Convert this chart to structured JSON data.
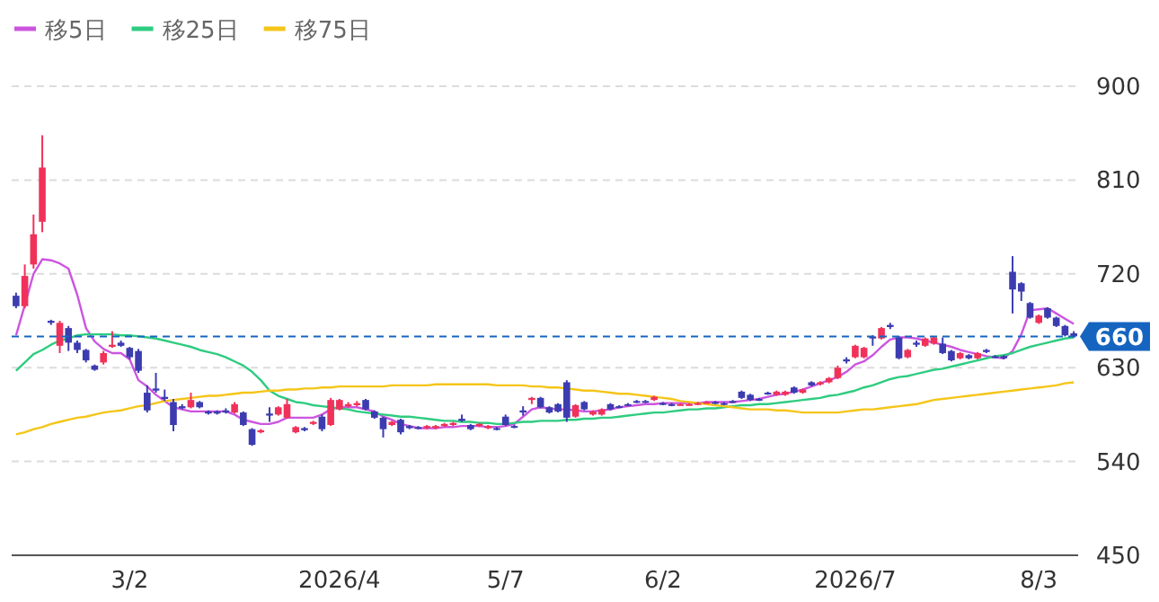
{
  "chart_data": {
    "type": "candlestick",
    "categories": [
      null,
      null,
      null,
      null,
      null,
      null,
      null,
      null,
      null,
      null,
      null,
      null,
      null,
      "3/2",
      null,
      null,
      null,
      null,
      null,
      null,
      null,
      null,
      null,
      null,
      null,
      null,
      null,
      null,
      null,
      null,
      null,
      null,
      null,
      null,
      null,
      null,
      null,
      "2026/4",
      null,
      null,
      null,
      null,
      null,
      null,
      null,
      null,
      null,
      null,
      null,
      null,
      null,
      null,
      null,
      null,
      null,
      null,
      "5/7",
      null,
      null,
      null,
      null,
      null,
      null,
      null,
      null,
      null,
      null,
      null,
      null,
      null,
      null,
      null,
      null,
      null,
      "6/2",
      null,
      null,
      null,
      null,
      null,
      null,
      null,
      null,
      null,
      null,
      null,
      null,
      null,
      null,
      null,
      null,
      null,
      null,
      null,
      null,
      null,
      "2026/7",
      null,
      null,
      null,
      null,
      null,
      null,
      null,
      null,
      null,
      null,
      null,
      null,
      null,
      null,
      null,
      null,
      null,
      null,
      null,
      null,
      "8/3",
      null,
      null,
      null,
      null
    ],
    "ohlc": [
      [
        699,
        702,
        687,
        689
      ],
      [
        689,
        729,
        687,
        718
      ],
      [
        729,
        777,
        725,
        758
      ],
      [
        770,
        853,
        760,
        822
      ],
      [
        675,
        676,
        671,
        673
      ],
      [
        651,
        675,
        644,
        673
      ],
      [
        668,
        670,
        646,
        654
      ],
      [
        654,
        656,
        644,
        647
      ],
      [
        647,
        648,
        635,
        637
      ],
      [
        632,
        633,
        627,
        628
      ],
      [
        635,
        646,
        633,
        644
      ],
      [
        650,
        665,
        649,
        652
      ],
      [
        654,
        656,
        650,
        651
      ],
      [
        649,
        650,
        638,
        640
      ],
      [
        646,
        648,
        625,
        627
      ],
      [
        606,
        613,
        587,
        589
      ],
      [
        610,
        625,
        606,
        608
      ],
      [
        602,
        609,
        598,
        600
      ],
      [
        597,
        600,
        569,
        575
      ],
      [
        593,
        595,
        590,
        591
      ],
      [
        592,
        606,
        591,
        599
      ],
      [
        597,
        598,
        591,
        592
      ],
      [
        588,
        589,
        585,
        586
      ],
      [
        588,
        589,
        585,
        586
      ],
      [
        589,
        591,
        586,
        587
      ],
      [
        587,
        597,
        586,
        595
      ],
      [
        587,
        588,
        574,
        575
      ],
      [
        571,
        572,
        555,
        556
      ],
      [
        568,
        571,
        567,
        570
      ],
      [
        586,
        592,
        578,
        584
      ],
      [
        585,
        593,
        584,
        592
      ],
      [
        582,
        600,
        581,
        595
      ],
      [
        568,
        574,
        567,
        573
      ],
      [
        572,
        573,
        569,
        570
      ],
      [
        576,
        579,
        575,
        578
      ],
      [
        583,
        585,
        569,
        571
      ],
      [
        575,
        601,
        574,
        599
      ],
      [
        590,
        600,
        589,
        599
      ],
      [
        593,
        597,
        592,
        595
      ],
      [
        594,
        598,
        593,
        596
      ],
      [
        599,
        600,
        589,
        590
      ],
      [
        588,
        589,
        581,
        582
      ],
      [
        582,
        583,
        563,
        571
      ],
      [
        575,
        579,
        574,
        578
      ],
      [
        580,
        581,
        566,
        568
      ],
      [
        574,
        575,
        571,
        572
      ],
      [
        573,
        574,
        571,
        572
      ],
      [
        572,
        575,
        571,
        574
      ],
      [
        572,
        575,
        571,
        574
      ],
      [
        574,
        577,
        573,
        576
      ],
      [
        575,
        578,
        574,
        577
      ],
      [
        581,
        585,
        578,
        579
      ],
      [
        575,
        576,
        570,
        571
      ],
      [
        574,
        577,
        573,
        576
      ],
      [
        572,
        575,
        571,
        574
      ],
      [
        572,
        573,
        570,
        571
      ],
      [
        583,
        585,
        574,
        575
      ],
      [
        574,
        575,
        572,
        573
      ],
      [
        589,
        593,
        584,
        587
      ],
      [
        599,
        602,
        595,
        601
      ],
      [
        601,
        602,
        591,
        592
      ],
      [
        592,
        593,
        586,
        587
      ],
      [
        595,
        596,
        587,
        588
      ],
      [
        616,
        618,
        578,
        582
      ],
      [
        583,
        595,
        582,
        594
      ],
      [
        597,
        598,
        589,
        590
      ],
      [
        585,
        589,
        584,
        588
      ],
      [
        585,
        591,
        584,
        590
      ],
      [
        595,
        596,
        589,
        590
      ],
      [
        593,
        594,
        591,
        592
      ],
      [
        595,
        596,
        593,
        594
      ],
      [
        598,
        599,
        596,
        597
      ],
      [
        598,
        599,
        596,
        597
      ],
      [
        599,
        603,
        598,
        602
      ],
      [
        596,
        597,
        594,
        595
      ],
      [
        595,
        596,
        593,
        594
      ],
      [
        595,
        596,
        594,
        595
      ],
      [
        595,
        596,
        594,
        595
      ],
      [
        595,
        597,
        594,
        596
      ],
      [
        597,
        598,
        596,
        597
      ],
      [
        597,
        598,
        595,
        596
      ],
      [
        596,
        597,
        594,
        595
      ],
      [
        598,
        599,
        596,
        597
      ],
      [
        607,
        608,
        600,
        601
      ],
      [
        604,
        605,
        598,
        599
      ],
      [
        600,
        601,
        598,
        599
      ],
      [
        606,
        607,
        604,
        605
      ],
      [
        604,
        608,
        603,
        607
      ],
      [
        604,
        608,
        603,
        607
      ],
      [
        611,
        612,
        605,
        606
      ],
      [
        606,
        610,
        605,
        609
      ],
      [
        616,
        617,
        612,
        613
      ],
      [
        614,
        617,
        613,
        616
      ],
      [
        616,
        621,
        615,
        620
      ],
      [
        620,
        632,
        619,
        630
      ],
      [
        638,
        640,
        634,
        636
      ],
      [
        640,
        652,
        639,
        651
      ],
      [
        640,
        650,
        639,
        649
      ],
      [
        660,
        661,
        651,
        658
      ],
      [
        658,
        669,
        657,
        668
      ],
      [
        671,
        673,
        667,
        669
      ],
      [
        659,
        660,
        638,
        639
      ],
      [
        640,
        648,
        639,
        647
      ],
      [
        654,
        656,
        650,
        652
      ],
      [
        651,
        659,
        650,
        658
      ],
      [
        653,
        660,
        652,
        659
      ],
      [
        653,
        659,
        643,
        644
      ],
      [
        646,
        647,
        636,
        637
      ],
      [
        639,
        645,
        638,
        644
      ],
      [
        642,
        643,
        638,
        639
      ],
      [
        639,
        645,
        638,
        644
      ],
      [
        647,
        648,
        644,
        645
      ],
      [
        641,
        642,
        639,
        640
      ],
      [
        641,
        642,
        638,
        639
      ],
      [
        722,
        737,
        682,
        705
      ],
      [
        711,
        712,
        694,
        703
      ],
      [
        692,
        693,
        677,
        678
      ],
      [
        673,
        681,
        672,
        680
      ],
      [
        687,
        688,
        677,
        678
      ],
      [
        678,
        679,
        669,
        670
      ],
      [
        670,
        671,
        660,
        661
      ],
      [
        663,
        665,
        659,
        660
      ]
    ],
    "series": [
      {
        "type": "line",
        "name": "移5日",
        "color": "#cc55e0",
        "values": [
          661,
          690,
          720,
          734,
          733,
          730,
          725,
          700,
          668,
          655,
          648,
          644,
          644,
          638,
          618,
          612,
          604,
          598,
          592,
          590,
          588,
          588,
          588,
          588,
          588,
          585,
          580,
          578,
          576,
          576,
          578,
          582,
          582,
          582,
          582,
          585,
          590,
          592,
          592,
          592,
          590,
          588,
          583,
          580,
          576,
          574,
          572,
          572,
          572,
          573,
          573,
          574,
          574,
          574,
          573,
          573,
          574,
          576,
          583,
          590,
          592,
          591,
          590,
          590,
          589,
          588,
          588,
          589,
          590,
          592,
          593,
          594,
          595,
          595,
          596,
          596,
          596,
          596,
          596,
          597,
          597,
          597,
          597,
          598,
          599,
          600,
          602,
          604,
          605,
          607,
          609,
          612,
          615,
          618,
          621,
          626,
          633,
          636,
          642,
          650,
          657,
          659,
          659,
          658,
          656,
          654,
          652,
          650,
          647,
          645,
          643,
          641,
          640,
          639,
          646,
          662,
          685,
          686,
          687,
          682,
          677,
          672
        ]
      },
      {
        "type": "line",
        "name": "移25日",
        "color": "#2ecc80",
        "values": [
          627,
          635,
          643,
          647,
          652,
          656,
          658,
          661,
          662,
          662,
          662,
          662,
          661,
          661,
          660,
          659,
          658,
          656,
          654,
          652,
          650,
          647,
          645,
          643,
          640,
          636,
          632,
          626,
          618,
          608,
          603,
          600,
          597,
          596,
          594,
          593,
          592,
          591,
          590,
          588,
          587,
          586,
          585,
          584,
          583,
          583,
          582,
          581,
          580,
          579,
          579,
          578,
          578,
          577,
          577,
          576,
          576,
          577,
          578,
          578,
          579,
          579,
          579,
          580,
          580,
          581,
          581,
          582,
          582,
          583,
          584,
          585,
          586,
          587,
          587,
          588,
          589,
          590,
          590,
          591,
          591,
          592,
          593,
          594,
          594,
          595,
          595,
          596,
          597,
          598,
          599,
          600,
          601,
          603,
          604,
          606,
          608,
          611,
          613,
          616,
          619,
          621,
          622,
          624,
          626,
          628,
          629,
          631,
          633,
          635,
          637,
          639,
          641,
          642,
          644,
          647,
          650,
          652,
          654,
          656,
          658,
          659
        ]
      },
      {
        "type": "line",
        "name": "移75日",
        "color": "#f5c518",
        "values": [
          566,
          568,
          571,
          573,
          576,
          578,
          580,
          582,
          583,
          585,
          587,
          588,
          589,
          591,
          593,
          594,
          596,
          598,
          599,
          600,
          601,
          602,
          603,
          603,
          604,
          605,
          606,
          606,
          607,
          608,
          608,
          609,
          609,
          610,
          610,
          611,
          611,
          612,
          612,
          612,
          612,
          612,
          612,
          613,
          613,
          613,
          613,
          613,
          614,
          614,
          614,
          614,
          614,
          614,
          614,
          613,
          613,
          613,
          613,
          612,
          612,
          611,
          611,
          610,
          609,
          608,
          608,
          607,
          606,
          605,
          605,
          604,
          603,
          602,
          601,
          600,
          598,
          597,
          596,
          595,
          594,
          593,
          592,
          591,
          590,
          590,
          590,
          589,
          589,
          588,
          587,
          587,
          587,
          587,
          587,
          588,
          589,
          590,
          590,
          591,
          592,
          593,
          594,
          595,
          597,
          599,
          600,
          601,
          602,
          603,
          604,
          605,
          606,
          607,
          608,
          609,
          610,
          611,
          612,
          613,
          615,
          616
        ]
      }
    ],
    "ylim": [
      450,
      900
    ],
    "yticks": [
      450,
      540,
      630,
      720,
      810,
      900
    ],
    "grid": "y",
    "legend": "top left",
    "ref_lines": [
      {
        "axis": "y",
        "value": 660,
        "label": "660",
        "color": "#1565c0",
        "line_style": "dashed"
      }
    ]
  }
}
